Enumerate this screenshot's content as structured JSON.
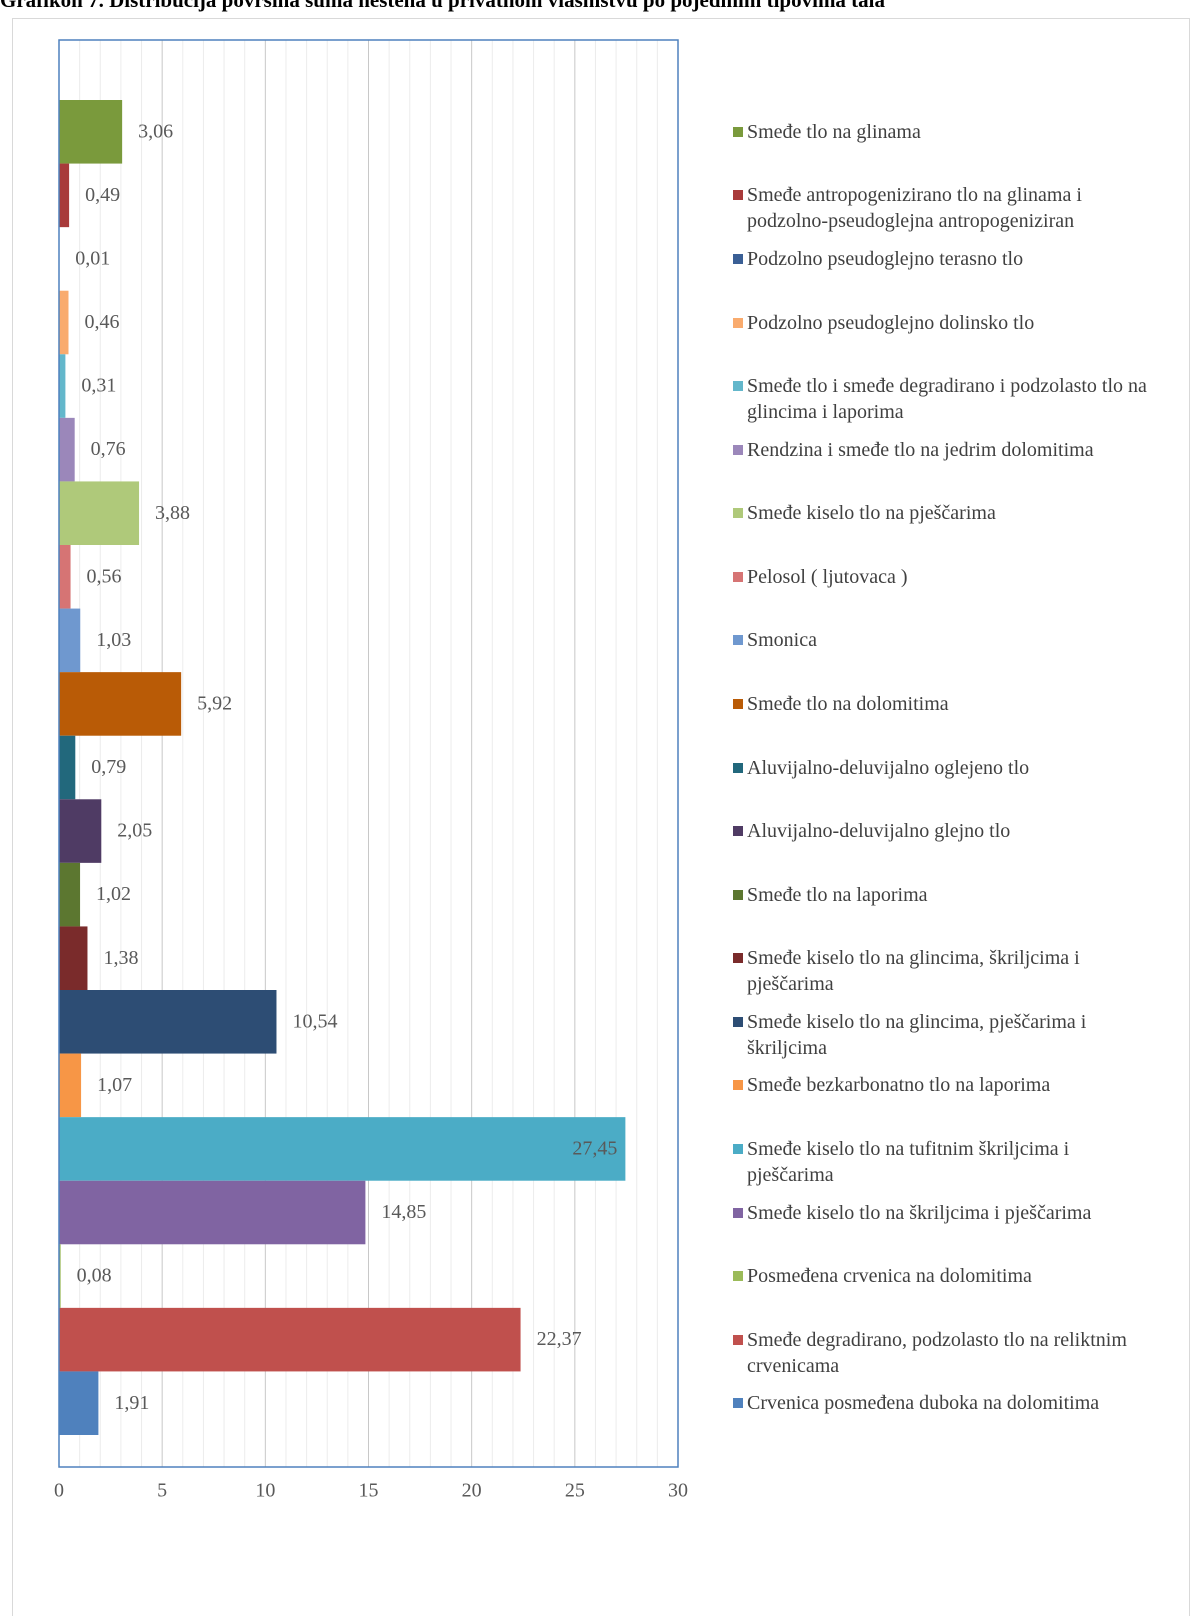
{
  "chart_data": {
    "type": "bar",
    "orientation": "horizontal",
    "title": "Grafikon 7. Distribucija površina šuma nestena u privatnom vlasništvu po pojedinim tipovima tala",
    "xlim": [
      0,
      30
    ],
    "xticks": [
      0,
      5,
      10,
      15,
      20,
      25,
      30
    ],
    "minor_xticks": [
      1,
      2,
      3,
      4,
      6,
      7,
      8,
      9,
      11,
      12,
      13,
      14,
      16,
      17,
      18,
      19,
      21,
      22,
      23,
      24,
      26,
      27,
      28,
      29
    ],
    "grid": true,
    "legend": "right",
    "series": [
      {
        "name": "Smeđe tlo na glinama",
        "color": "#7a9a3c",
        "values": [
          3.06
        ],
        "value_labels": [
          "3,06"
        ]
      },
      {
        "name": "Smeđe antropogenizirano tlo na glinama i podzolno-pseudoglejna antropogeniziran",
        "color": "#a83a3a",
        "values": [
          0.49
        ],
        "value_labels": [
          "0,49"
        ]
      },
      {
        "name": "Podzolno pseudoglejno terasno tlo",
        "color": "#3a5f95",
        "values": [
          0.01
        ],
        "value_labels": [
          "0,01"
        ]
      },
      {
        "name": "Podzolno pseudoglejno dolinsko tlo",
        "color": "#f9ab6e",
        "values": [
          0.46
        ],
        "value_labels": [
          "0,46"
        ]
      },
      {
        "name": "Smeđe tlo i smeđe degradirano i podzolasto tlo na glincima i laporima",
        "color": "#63b7cb",
        "values": [
          0.31
        ],
        "value_labels": [
          "0,31"
        ]
      },
      {
        "name": "Rendzina i smeđe tlo na jedrim dolomitima",
        "color": "#9b87ba",
        "values": [
          0.76
        ],
        "value_labels": [
          "0,76"
        ]
      },
      {
        "name": "Smeđe kiselo tlo na pješčarima",
        "color": "#afc97a",
        "values": [
          3.88
        ],
        "value_labels": [
          "3,88"
        ]
      },
      {
        "name": "Pelosol ( ljutovaca )",
        "color": "#d67474",
        "values": [
          0.56
        ],
        "value_labels": [
          "0,56"
        ]
      },
      {
        "name": "Smonica",
        "color": "#6f98cf",
        "values": [
          1.03
        ],
        "value_labels": [
          "1,03"
        ]
      },
      {
        "name": "Smeđe tlo na dolomitima",
        "color": "#b95b06",
        "values": [
          5.92
        ],
        "value_labels": [
          "5,92"
        ]
      },
      {
        "name": "Aluvijalno-deluvijalno oglejeno tlo",
        "color": "#22687c",
        "values": [
          0.79
        ],
        "value_labels": [
          "0,79"
        ]
      },
      {
        "name": "Aluvijalno-deluvijalno glejno tlo",
        "color": "#4f3b64",
        "values": [
          2.05
        ],
        "value_labels": [
          "2,05"
        ]
      },
      {
        "name": "Smeđe tlo na laporima",
        "color": "#5c7730",
        "values": [
          1.02
        ],
        "value_labels": [
          "1,02"
        ]
      },
      {
        "name": "Smeđe kiselo tlo na glincima, škriljcima i pješčarima",
        "color": "#7a2b2b",
        "values": [
          1.38
        ],
        "value_labels": [
          "1,38"
        ]
      },
      {
        "name": "Smeđe kiselo tlo na glincima, pješčarima i škriljcima",
        "color": "#2d4d74",
        "values": [
          10.54
        ],
        "value_labels": [
          "10,54"
        ]
      },
      {
        "name": "Smeđe bezkarbonatno tlo na laporima",
        "color": "#f79646",
        "values": [
          1.07
        ],
        "value_labels": [
          "1,07"
        ]
      },
      {
        "name": "Smeđe kiselo tlo na tufitnim škriljcima i pješčarima",
        "color": "#4bacc6",
        "values": [
          27.45
        ],
        "value_labels": [
          "27,45"
        ]
      },
      {
        "name": "Smeđe kiselo tlo na škriljcima i pješčarima",
        "color": "#8064a2",
        "values": [
          14.85
        ],
        "value_labels": [
          "14,85"
        ]
      },
      {
        "name": "Posmeđena crvenica na dolomitima",
        "color": "#9bbb59",
        "values": [
          0.08
        ],
        "value_labels": [
          "0,08"
        ]
      },
      {
        "name": "Smeđe degradirano, podzolasto tlo na reliktnim crvenicama",
        "color": "#c0504d",
        "values": [
          22.37
        ],
        "value_labels": [
          "22,37"
        ]
      },
      {
        "name": "Crvenica posmeđena duboka na dolomitima",
        "color": "#4f81bd",
        "values": [
          1.91
        ],
        "value_labels": [
          "1,91"
        ]
      }
    ]
  }
}
